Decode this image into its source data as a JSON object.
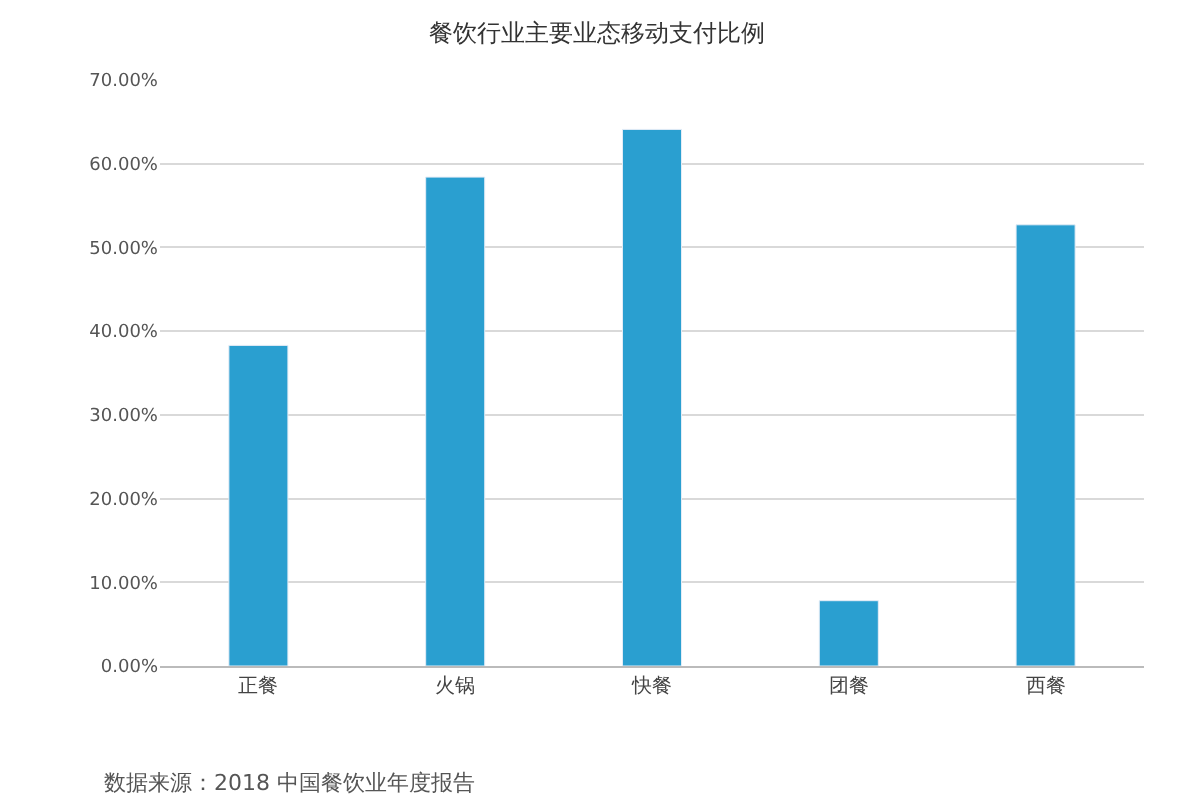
{
  "chart_data": {
    "type": "bar",
    "title": "餐饮行业主要业态移动支付比例",
    "categories": [
      "正餐",
      "火锅",
      "快餐",
      "团餐",
      "西餐"
    ],
    "values": [
      38.3,
      58.4,
      64.1,
      7.8,
      52.7
    ],
    "color": "#2a9fd0",
    "ylim": [
      0,
      70
    ],
    "yticks": [
      {
        "value": 0,
        "label": "0.00%"
      },
      {
        "value": 10,
        "label": "10.00%"
      },
      {
        "value": 20,
        "label": "20.00%"
      },
      {
        "value": 30,
        "label": "30.00%"
      },
      {
        "value": 40,
        "label": "40.00%"
      },
      {
        "value": 50,
        "label": "50.00%"
      },
      {
        "value": 60,
        "label": "60.00%"
      },
      {
        "value": 70,
        "label": "70.00%"
      }
    ],
    "grid": "y",
    "legend": false,
    "annotations": [
      "数据来源：2018 中国餐饮业年度报告"
    ]
  }
}
